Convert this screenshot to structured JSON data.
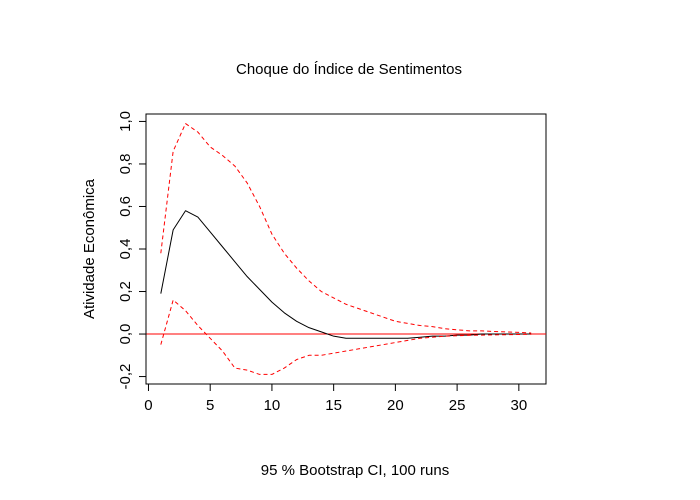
{
  "chart_data": {
    "type": "line",
    "title": "Choque do Índice de Sentimentos",
    "xlabel": "95 % Bootstrap CI,  100 runs",
    "ylabel": "Atividade Econômica",
    "xlim": [
      -0.2,
      32.2
    ],
    "ylim": [
      -0.235,
      1.035
    ],
    "x_ticks": [
      0,
      5,
      10,
      15,
      20,
      25,
      30
    ],
    "x_tick_labels": [
      "0",
      "5",
      "10",
      "15",
      "20",
      "25",
      "30"
    ],
    "y_ticks": [
      -0.2,
      0.0,
      0.2,
      0.4,
      0.6,
      0.8,
      1.0
    ],
    "y_tick_labels": [
      "-0,2",
      "0,0",
      "0,2",
      "0,4",
      "0,6",
      "0,8",
      "1,0"
    ],
    "grid": false,
    "zero_line": {
      "y": 0,
      "color": "#ff0000"
    },
    "x": [
      1,
      2,
      3,
      4,
      5,
      6,
      7,
      8,
      9,
      10,
      11,
      12,
      13,
      14,
      15,
      16,
      17,
      18,
      19,
      20,
      21,
      22,
      23,
      24,
      25,
      26,
      27,
      28,
      29,
      30,
      31
    ],
    "series": [
      {
        "role": "irf",
        "color": "#000000",
        "dash": "solid",
        "values": [
          0.19,
          0.49,
          0.58,
          0.55,
          0.48,
          0.41,
          0.34,
          0.27,
          0.21,
          0.15,
          0.1,
          0.06,
          0.03,
          0.01,
          -0.01,
          -0.02,
          -0.02,
          -0.02,
          -0.02,
          -0.02,
          -0.02,
          -0.015,
          -0.01,
          -0.01,
          -0.005,
          -0.005,
          0,
          0,
          0,
          0,
          0
        ]
      },
      {
        "role": "upper",
        "color": "#ff0000",
        "dash": "dashed",
        "values": [
          0.38,
          0.86,
          0.99,
          0.95,
          0.88,
          0.84,
          0.79,
          0.71,
          0.6,
          0.47,
          0.38,
          0.31,
          0.25,
          0.2,
          0.17,
          0.14,
          0.12,
          0.1,
          0.08,
          0.06,
          0.05,
          0.04,
          0.035,
          0.025,
          0.02,
          0.015,
          0.015,
          0.012,
          0.01,
          0.008,
          0.005
        ]
      },
      {
        "role": "lower",
        "color": "#ff0000",
        "dash": "dashed",
        "values": [
          -0.05,
          0.16,
          0.11,
          0.04,
          -0.02,
          -0.08,
          -0.16,
          -0.17,
          -0.19,
          -0.19,
          -0.16,
          -0.12,
          -0.1,
          -0.1,
          -0.09,
          -0.08,
          -0.07,
          -0.06,
          -0.05,
          -0.04,
          -0.03,
          -0.02,
          -0.015,
          -0.01,
          -0.008,
          -0.006,
          -0.005,
          -0.004,
          -0.003,
          -0.002,
          -0.001
        ]
      }
    ]
  }
}
